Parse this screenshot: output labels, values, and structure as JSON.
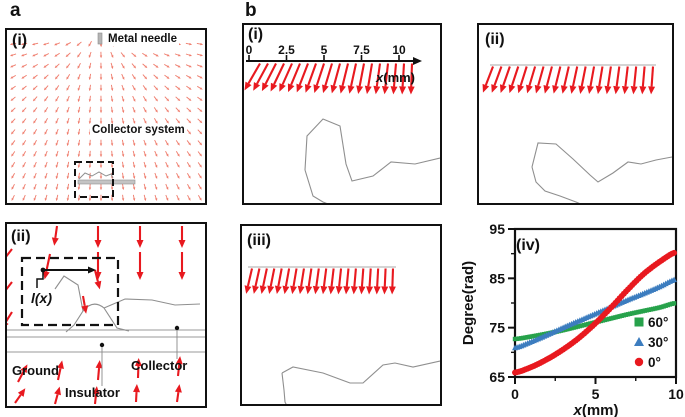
{
  "figure_labels": {
    "a": "a",
    "b": "b"
  },
  "panel_a_i": {
    "index": "(i)",
    "metal_needle_label": "Metal needle",
    "collector_system_label": "Collector system"
  },
  "panel_a_ii": {
    "index": "(ii)",
    "length_annotation": "l(x)",
    "ground_label": "Ground",
    "insulator_label": "Insulator",
    "collector_label": "Collector"
  },
  "panel_b_i": {
    "index": "(i)",
    "axis_ticks": [
      "0",
      "2.5",
      "5",
      "7.5",
      "10"
    ],
    "axis_label_var": "x",
    "axis_label_unit": "(mm)"
  },
  "panel_b_ii": {
    "index": "(ii)"
  },
  "panel_b_iii": {
    "index": "(iii)"
  },
  "panel_b_iv": {
    "index": "(iv)"
  },
  "chart_data": {
    "type": "scatter",
    "panel": "(iv)",
    "xlabel_var": "x",
    "xlabel_unit": "(mm)",
    "ylabel": "Degree(rad)",
    "xlim": [
      0,
      10
    ],
    "ylim": [
      65,
      95
    ],
    "xticks_major": [
      0,
      5,
      10
    ],
    "xticks_minor": [
      2.5,
      7.5
    ],
    "yticks_major": [
      65,
      75,
      85,
      95
    ],
    "yticks_minor": [
      70,
      80,
      90
    ],
    "grid": false,
    "legend_position": "inside-right-bottom",
    "x": [
      0,
      1,
      2,
      3,
      4,
      5,
      6,
      7,
      8,
      9,
      10
    ],
    "series": [
      {
        "name": "60°",
        "marker": "square",
        "color": "#27a24b",
        "values": [
          72.7,
          73.2,
          73.8,
          74.5,
          75.3,
          76.1,
          76.9,
          77.7,
          78.4,
          79.1,
          80.0
        ]
      },
      {
        "name": "30°",
        "marker": "triangle",
        "color": "#3c7dbf",
        "values": [
          70.9,
          72.1,
          73.5,
          75.0,
          76.4,
          77.8,
          79.2,
          80.6,
          81.9,
          83.3,
          84.8
        ]
      },
      {
        "name": "0°",
        "marker": "circle",
        "color": "#e8191f",
        "values": [
          65.9,
          67.0,
          68.6,
          70.6,
          73.0,
          75.9,
          79.2,
          82.7,
          85.9,
          88.4,
          90.3
        ]
      }
    ]
  },
  "colors": {
    "field_arrow": "#ef7b6b",
    "strong_arrow": "#e8191f",
    "contour": "#8f8f8f",
    "frame": "#111111",
    "needle": "#b5b5b5",
    "collector_bar": "#c4c4c4"
  }
}
